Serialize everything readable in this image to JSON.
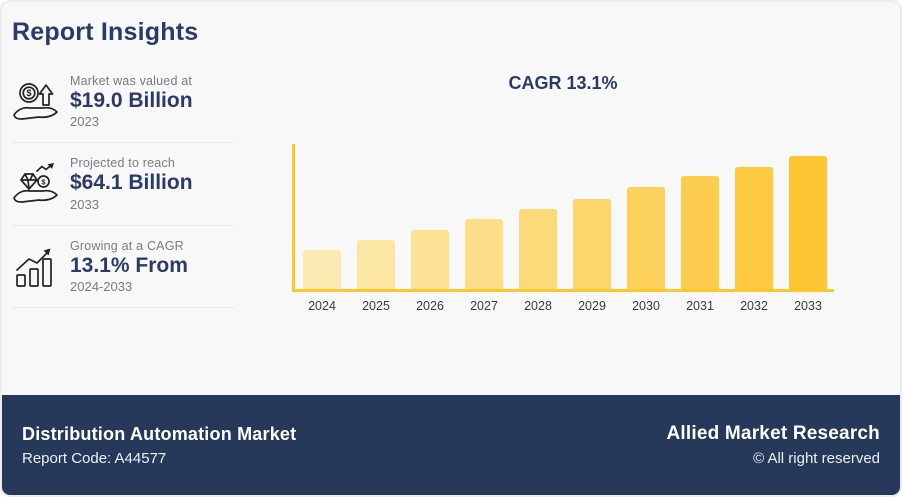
{
  "page": {
    "title": "Report Insights"
  },
  "insights": {
    "items": [
      {
        "icon": "hand-coin-growth-icon",
        "label": "Market was valued at",
        "value": "$19.0 Billion",
        "period": "2023"
      },
      {
        "icon": "hand-diamond-coin-icon",
        "label": "Projected to reach",
        "value": "$64.1 Billion",
        "period": "2033"
      },
      {
        "icon": "growth-bars-arrow-icon",
        "label": "Growing at a CAGR",
        "value": "13.1% From",
        "period": "2024-2033"
      }
    ]
  },
  "chart_data": {
    "type": "bar",
    "title": "CAGR 13.1%",
    "categories": [
      "2024",
      "2025",
      "2026",
      "2027",
      "2028",
      "2029",
      "2030",
      "2031",
      "2032",
      "2033"
    ],
    "values": [
      29,
      37,
      44,
      53,
      60,
      68,
      77,
      85,
      92,
      100
    ],
    "value_basis": "relative bar height, percent of tallest bar (no y-axis labels shown)",
    "ylim": [
      0,
      100
    ],
    "xlabel": "",
    "ylabel": "",
    "grid": false,
    "legend": false,
    "bar_colors": [
      "#FBEAB2",
      "#FBE6A4",
      "#FBE295",
      "#FBDE87",
      "#FCDA79",
      "#FCD66A",
      "#FCD15C",
      "#FCCD4E",
      "#FCC93F",
      "#FCC531"
    ],
    "axis_color": "#FFC72C"
  },
  "footer": {
    "report_title": "Distribution Automation Market",
    "report_code": "Report Code: A44577",
    "brand": "Allied Market Research",
    "rights": "© All right reserved"
  },
  "colors": {
    "navy_text": "#2B3A66",
    "footer_bg": "#26395B",
    "muted_text": "#7B7B80",
    "background": "#F8F8F9"
  }
}
